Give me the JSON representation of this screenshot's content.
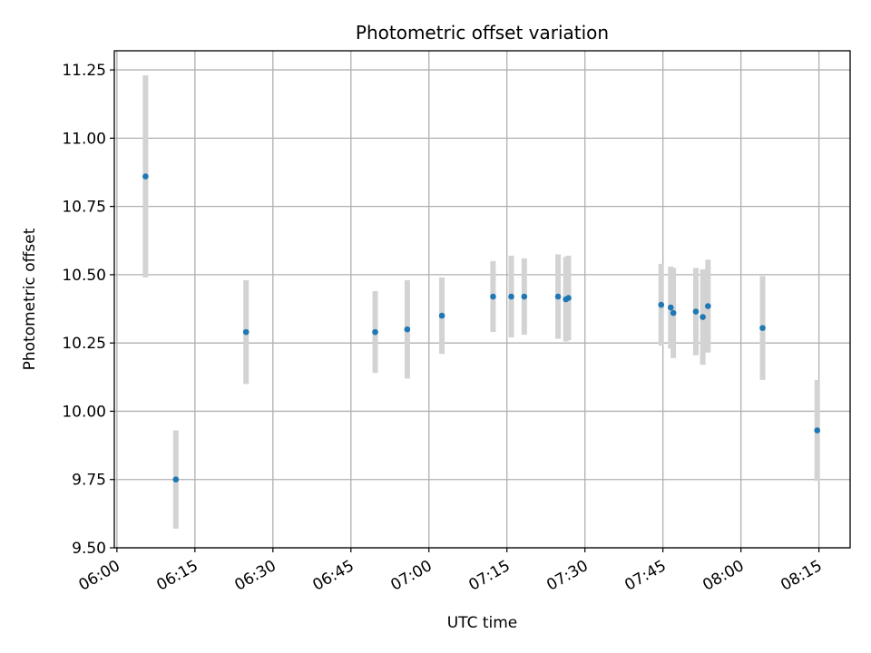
{
  "chart_data": {
    "type": "scatter",
    "title": "Photometric offset variation",
    "xlabel": "UTC time",
    "ylabel": "Photometric offset",
    "xlim": [
      "05:59:30",
      "08:21:00"
    ],
    "ylim": [
      9.5,
      11.32
    ],
    "x_ticks": [
      "06:00",
      "06:15",
      "06:30",
      "06:45",
      "07:00",
      "07:15",
      "07:30",
      "07:45",
      "08:00",
      "08:15"
    ],
    "y_ticks": [
      "9.50",
      "9.75",
      "10.00",
      "10.25",
      "10.50",
      "10.75",
      "11.00",
      "11.25"
    ],
    "grid": true,
    "colors": {
      "point": "#1f77b4",
      "errorbar": "#d3d3d3",
      "grid": "#b0b0b0"
    },
    "series": [
      {
        "points": [
          {
            "x": "06:05:30",
            "y": 10.86,
            "err": 0.37
          },
          {
            "x": "06:11:20",
            "y": 9.75,
            "err": 0.18
          },
          {
            "x": "06:24:50",
            "y": 10.29,
            "err": 0.19
          },
          {
            "x": "06:49:40",
            "y": 10.29,
            "err": 0.15
          },
          {
            "x": "06:55:50",
            "y": 10.3,
            "err": 0.18
          },
          {
            "x": "07:02:30",
            "y": 10.35,
            "err": 0.14
          },
          {
            "x": "07:12:20",
            "y": 10.42,
            "err": 0.13
          },
          {
            "x": "07:15:50",
            "y": 10.42,
            "err": 0.15
          },
          {
            "x": "07:18:20",
            "y": 10.42,
            "err": 0.14
          },
          {
            "x": "07:24:50",
            "y": 10.42,
            "err": 0.155
          },
          {
            "x": "07:26:20",
            "y": 10.41,
            "err": 0.155
          },
          {
            "x": "07:26:50",
            "y": 10.415,
            "err": 0.155
          },
          {
            "x": "07:44:40",
            "y": 10.39,
            "err": 0.15
          },
          {
            "x": "07:46:30",
            "y": 10.38,
            "err": 0.15
          },
          {
            "x": "07:47:00",
            "y": 10.36,
            "err": 0.165
          },
          {
            "x": "07:51:20",
            "y": 10.365,
            "err": 0.16
          },
          {
            "x": "07:52:40",
            "y": 10.345,
            "err": 0.175
          },
          {
            "x": "07:53:40",
            "y": 10.385,
            "err": 0.17
          },
          {
            "x": "08:04:10",
            "y": 10.305,
            "err": 0.19
          },
          {
            "x": "08:14:40",
            "y": 9.93,
            "err": 0.185
          }
        ]
      }
    ]
  }
}
